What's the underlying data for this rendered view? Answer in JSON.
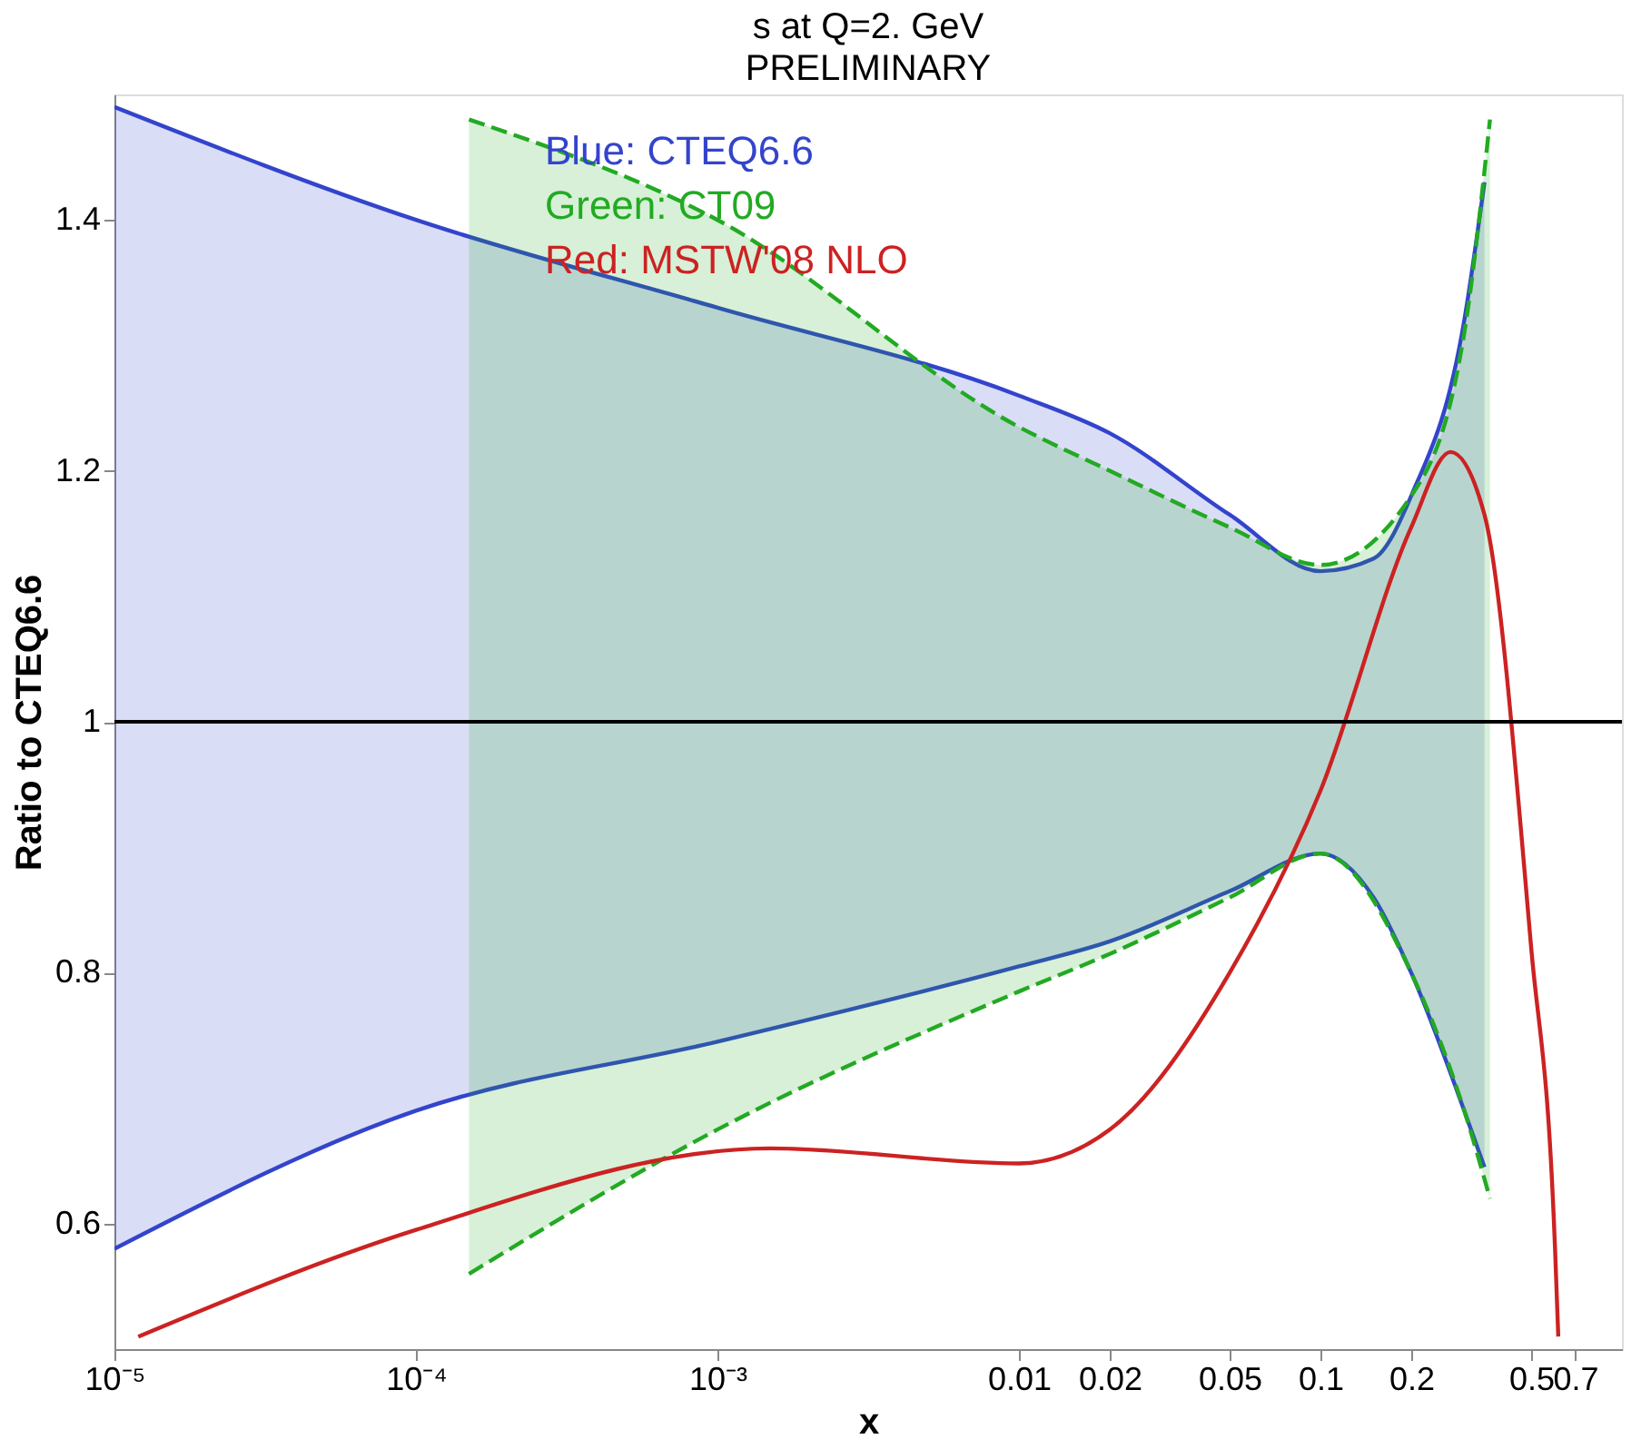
{
  "chart_data": {
    "type": "line",
    "title": "s at Q=2. GeV",
    "subtitle": "PRELIMINARY",
    "xlabel": "x",
    "ylabel": "Ratio to CTEQ6.6",
    "log": "x",
    "xlim": [
      1e-05,
      1
    ],
    "ylim": [
      0.5,
      1.5
    ],
    "xticks": [
      {
        "value": 1e-05,
        "label": "10⁻⁵"
      },
      {
        "value": 0.0001,
        "label": "10⁻⁴"
      },
      {
        "value": 0.001,
        "label": "10⁻³"
      },
      0.01,
      0.02,
      0.05,
      0.1,
      0.2,
      0.5,
      0.7
    ],
    "yticks": [
      0.6,
      0.8,
      1,
      1.2,
      1.4
    ],
    "grid": false,
    "legend": "top left",
    "marker": "none",
    "ref_lines": [
      {
        "axis": "y",
        "value": 1,
        "color": "#000000"
      }
    ],
    "series": [
      {
        "name": "Blue: CTEQ6.6",
        "type": "area",
        "color": "#3344cc",
        "x": [
          1e-05,
          0.0001,
          0.001,
          0.01,
          0.02,
          0.05,
          0.1,
          0.15,
          0.2,
          0.3,
          0.35
        ],
        "values": [
          null,
          null,
          null,
          null,
          null,
          null,
          null,
          null,
          null,
          null,
          null
        ],
        "upper": [
          1.49,
          1.4,
          1.33,
          1.26,
          1.23,
          1.165,
          1.12,
          1.13,
          1.18,
          1.32,
          1.43
        ],
        "lower": [
          0.58,
          0.69,
          0.745,
          0.805,
          0.825,
          0.865,
          0.895,
          0.86,
          0.8,
          0.69,
          0.645
        ]
      },
      {
        "color": "#3344cc",
        "x": [
          1e-05,
          0.0001,
          0.001,
          0.01,
          0.02,
          0.05,
          0.1,
          0.15,
          0.2,
          0.3,
          0.35
        ],
        "values": [
          1.49,
          1.4,
          1.33,
          1.26,
          1.23,
          1.165,
          1.12,
          1.13,
          1.18,
          1.32,
          1.43
        ]
      },
      {
        "color": "#3344cc",
        "x": [
          1e-05,
          0.0001,
          0.001,
          0.01,
          0.02,
          0.05,
          0.1,
          0.15,
          0.2,
          0.3,
          0.35
        ],
        "values": [
          0.58,
          0.69,
          0.745,
          0.805,
          0.825,
          0.865,
          0.895,
          0.86,
          0.8,
          0.69,
          0.645
        ]
      },
      {
        "name": "Green: CT09",
        "type": "area",
        "color": "#22aa22",
        "x": [
          0.00015,
          0.001,
          0.01,
          0.02,
          0.05,
          0.1,
          0.2,
          0.3,
          0.365
        ],
        "values": [
          null,
          null,
          null,
          null,
          null,
          null,
          null,
          null,
          null
        ],
        "upper": [
          1.48,
          1.4,
          1.235,
          1.2,
          1.155,
          1.125,
          1.18,
          1.31,
          1.48
        ],
        "lower": [
          0.56,
          0.675,
          0.785,
          0.815,
          0.86,
          0.895,
          0.8,
          0.69,
          0.62
        ]
      },
      {
        "color": "#22aa22",
        "line_style": "dashed",
        "x": [
          0.00015,
          0.001,
          0.01,
          0.02,
          0.05,
          0.1,
          0.2,
          0.3,
          0.365
        ],
        "values": [
          1.48,
          1.4,
          1.235,
          1.2,
          1.155,
          1.125,
          1.18,
          1.31,
          1.48
        ]
      },
      {
        "color": "#22aa22",
        "line_style": "dashed",
        "x": [
          0.00015,
          0.001,
          0.01,
          0.02,
          0.05,
          0.1,
          0.2,
          0.3,
          0.365
        ],
        "values": [
          0.56,
          0.675,
          0.785,
          0.815,
          0.86,
          0.895,
          0.8,
          0.69,
          0.62
        ]
      },
      {
        "name": "Red: MSTW'08 NLO",
        "color": "#cc2222",
        "x": [
          1.2e-05,
          0.0001,
          0.0015,
          0.01,
          0.02,
          0.05,
          0.1,
          0.2,
          0.27,
          0.35,
          0.5,
          0.6,
          0.615
        ],
        "values": [
          0.51,
          0.595,
          0.66,
          0.648,
          0.675,
          0.8,
          0.945,
          1.155,
          1.215,
          1.165,
          0.82,
          0.58,
          0.51
        ]
      }
    ]
  }
}
